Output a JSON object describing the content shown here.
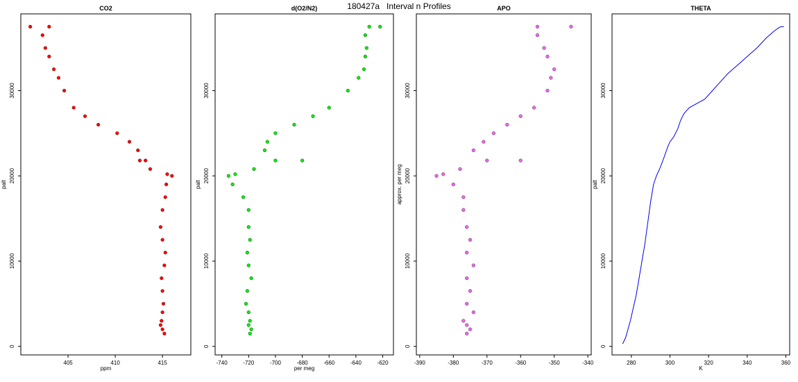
{
  "figure_title": "180427a   Interval n Profiles",
  "chart_data": [
    {
      "type": "scatter",
      "title": "CO2",
      "xlabel": "ppm",
      "ylabel": "palt",
      "xlim": [
        400,
        418
      ],
      "ylim": [
        -1000,
        39000
      ],
      "xticks": [
        405,
        410,
        415
      ],
      "yticks": [
        0,
        10000,
        20000,
        30000
      ],
      "color": "#ff0000",
      "series": [
        {
          "x": [
            401,
            403,
            402.3,
            402.6,
            403.0,
            403.5,
            404.0,
            404.6,
            405.6,
            406.8,
            408.2,
            410.2,
            411.5,
            412.4,
            412.6,
            413.2,
            413.7,
            415.5,
            416.0,
            415.4,
            415.3,
            415.0,
            414.8,
            415.0,
            415.3,
            415.2,
            414.9,
            415.0,
            415.1,
            415.0,
            414.9,
            414.8,
            415.0,
            415.2
          ],
          "y": [
            37500,
            37500,
            36500,
            35000,
            34000,
            32500,
            31500,
            30000,
            28000,
            27000,
            26000,
            25000,
            24000,
            23000,
            21800,
            21800,
            20800,
            20200,
            20000,
            19000,
            17500,
            16000,
            14000,
            12500,
            11000,
            9500,
            8000,
            6500,
            5000,
            4000,
            3000,
            2500,
            2000,
            1500
          ]
        }
      ]
    },
    {
      "type": "scatter",
      "title": "d(O2/N2)",
      "xlabel": "per meg",
      "ylabel": "palt",
      "xlim": [
        -745,
        -612
      ],
      "ylim": [
        -1000,
        39000
      ],
      "xticks": [
        -740,
        -720,
        -700,
        -680,
        -660,
        -640,
        -620
      ],
      "yticks": [
        0,
        10000,
        20000,
        30000
      ],
      "color": "#00ee00",
      "series": [
        {
          "x": [
            -630,
            -622,
            -633,
            -632,
            -633,
            -634,
            -638,
            -646,
            -660,
            -672,
            -686,
            -700,
            -706,
            -708,
            -700,
            -680,
            -716,
            -730,
            -735,
            -732,
            -724,
            -720,
            -720,
            -719,
            -721,
            -720,
            -718,
            -721,
            -722,
            -720,
            -719,
            -720,
            -718,
            -719
          ],
          "y": [
            37500,
            37500,
            36500,
            35000,
            34000,
            32500,
            31500,
            30000,
            28000,
            27000,
            26000,
            25000,
            24000,
            23000,
            21800,
            21800,
            20800,
            20200,
            20000,
            19000,
            17500,
            16000,
            14000,
            12500,
            11000,
            9500,
            8000,
            6500,
            5000,
            4000,
            3000,
            2500,
            2000,
            1500
          ]
        }
      ]
    },
    {
      "type": "scatter",
      "title": "APO",
      "xlabel": "",
      "ylabel": "approx. per meg",
      "xlim": [
        -391,
        -339
      ],
      "ylim": [
        -1000,
        39000
      ],
      "xticks": [
        -390,
        -380,
        -370,
        -360,
        -350,
        -340
      ],
      "yticks": [
        0,
        10000,
        20000,
        30000
      ],
      "color": "#ee66ee",
      "series": [
        {
          "x": [
            -355,
            -345,
            -355,
            -353,
            -352,
            -350,
            -351,
            -352,
            -356,
            -360,
            -364,
            -368,
            -371,
            -374,
            -370,
            -360,
            -378,
            -383,
            -385,
            -380,
            -377,
            -377,
            -376,
            -375,
            -376,
            -374,
            -376,
            -375,
            -376,
            -374,
            -377,
            -376,
            -375,
            -376
          ],
          "y": [
            37500,
            37500,
            36500,
            35000,
            34000,
            32500,
            31500,
            30000,
            28000,
            27000,
            26000,
            25000,
            24000,
            23000,
            21800,
            21800,
            20800,
            20200,
            20000,
            19000,
            17500,
            16000,
            14000,
            12500,
            11000,
            9500,
            8000,
            6500,
            5000,
            4000,
            3000,
            2500,
            2000,
            1500
          ]
        }
      ]
    },
    {
      "type": "line",
      "title": "THETA",
      "xlabel": "K",
      "ylabel": "palt",
      "xlim": [
        270,
        362
      ],
      "ylim": [
        -1000,
        39000
      ],
      "xticks": [
        280,
        300,
        320,
        340,
        360
      ],
      "yticks": [
        0,
        10000,
        20000,
        30000
      ],
      "color": "#0000ee",
      "series": [
        {
          "x": [
            275.5,
            277.0,
            278.0,
            279.5,
            281.0,
            282.5,
            284.0,
            285.5,
            287.0,
            288.5,
            290.0,
            291.5,
            293.0,
            295.0,
            297.0,
            299.0,
            300.0,
            302.0,
            304.0,
            305.5,
            307.0,
            308.0,
            310.0,
            314.0,
            318.0,
            322.0,
            326.0,
            330.0,
            335.0,
            340.0,
            345.0,
            350.0,
            354.0,
            356.5,
            357.5,
            359.0
          ],
          "y": [
            300,
            1000,
            1800,
            3000,
            4500,
            6000,
            8000,
            10000,
            12000,
            14500,
            17000,
            19000,
            20000,
            21000,
            22200,
            23500,
            24000,
            24600,
            25500,
            26500,
            27200,
            27500,
            28000,
            28500,
            29000,
            30000,
            31000,
            32000,
            33000,
            34000,
            35000,
            36200,
            37000,
            37400,
            37500,
            37500
          ]
        }
      ]
    }
  ]
}
